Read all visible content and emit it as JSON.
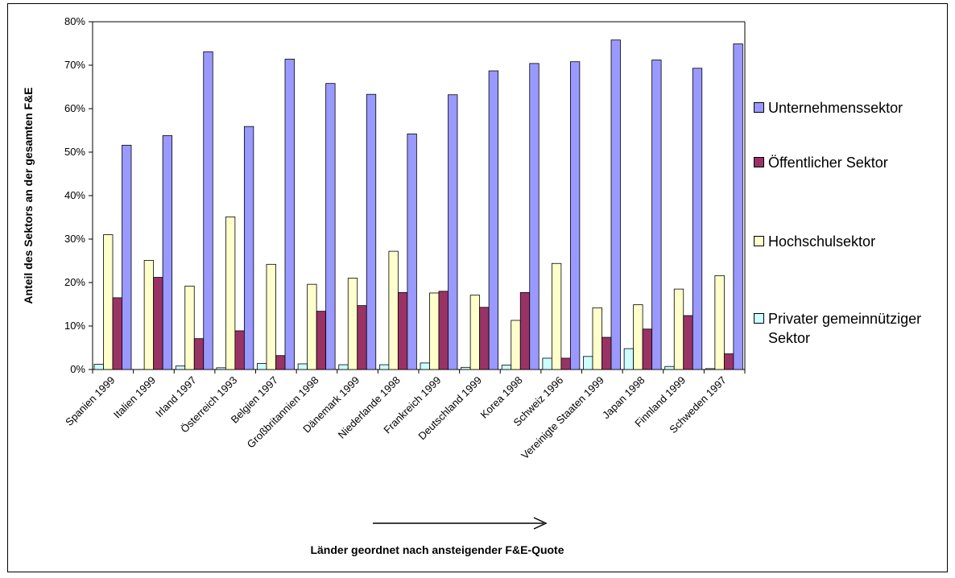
{
  "chart_data": {
    "type": "bar",
    "title": "",
    "ylabel": "Anteil des Sektors an der gesamten F&E",
    "xlabel": "Länder geordnet nach ansteigender F&E-Quote",
    "ylim": [
      0,
      80
    ],
    "yticks": [
      "0%",
      "10%",
      "20%",
      "30%",
      "40%",
      "50%",
      "60%",
      "70%",
      "80%"
    ],
    "grid": false,
    "legend_position": "right",
    "categories": [
      "Spanien 1999",
      "Italien 1999",
      "Irland 1997",
      "Österreich 1993",
      "Belgien 1997",
      "Großbritannien 1998",
      "Dänemark 1999",
      "Niederlande 1998",
      "Frankreich 1999",
      "Deutschland 1999",
      "Korea 1998",
      "Schweiz 1996",
      "Vereinigte Staaten 1999",
      "Japan 1998",
      "Finnland 1999",
      "Schweden 1997"
    ],
    "series": [
      {
        "name": "Privater gemeinnütziger Sektor",
        "color": "#CCFFFF",
        "values": [
          1.2,
          0.0,
          0.8,
          0.4,
          1.4,
          1.3,
          1.1,
          1.1,
          1.5,
          0.5,
          1.0,
          2.6,
          3.0,
          4.8,
          0.7,
          0.2
        ]
      },
      {
        "name": "Hochschulsektor",
        "color": "#FFFFCC",
        "values": [
          31.0,
          25.1,
          19.2,
          35.1,
          24.2,
          19.6,
          21.0,
          27.2,
          17.6,
          17.1,
          11.3,
          24.4,
          14.2,
          14.9,
          18.5,
          21.6
        ]
      },
      {
        "name": "Öffentlicher Sektor",
        "color": "#993366",
        "values": [
          16.5,
          21.2,
          7.1,
          8.9,
          3.2,
          13.4,
          14.7,
          17.7,
          18.0,
          14.3,
          17.7,
          2.6,
          7.4,
          9.3,
          12.4,
          3.6
        ]
      },
      {
        "name": "Unternehmenssektor",
        "color": "#9999FF",
        "values": [
          51.6,
          53.8,
          73.1,
          55.9,
          71.4,
          65.8,
          63.3,
          54.2,
          63.2,
          68.7,
          70.4,
          70.8,
          75.8,
          71.2,
          69.3,
          74.9
        ]
      }
    ],
    "legend_order": [
      "Unternehmenssektor",
      "Öffentlicher Sektor",
      "Hochschulsektor",
      "Privater gemeinnütziger Sektor"
    ]
  }
}
